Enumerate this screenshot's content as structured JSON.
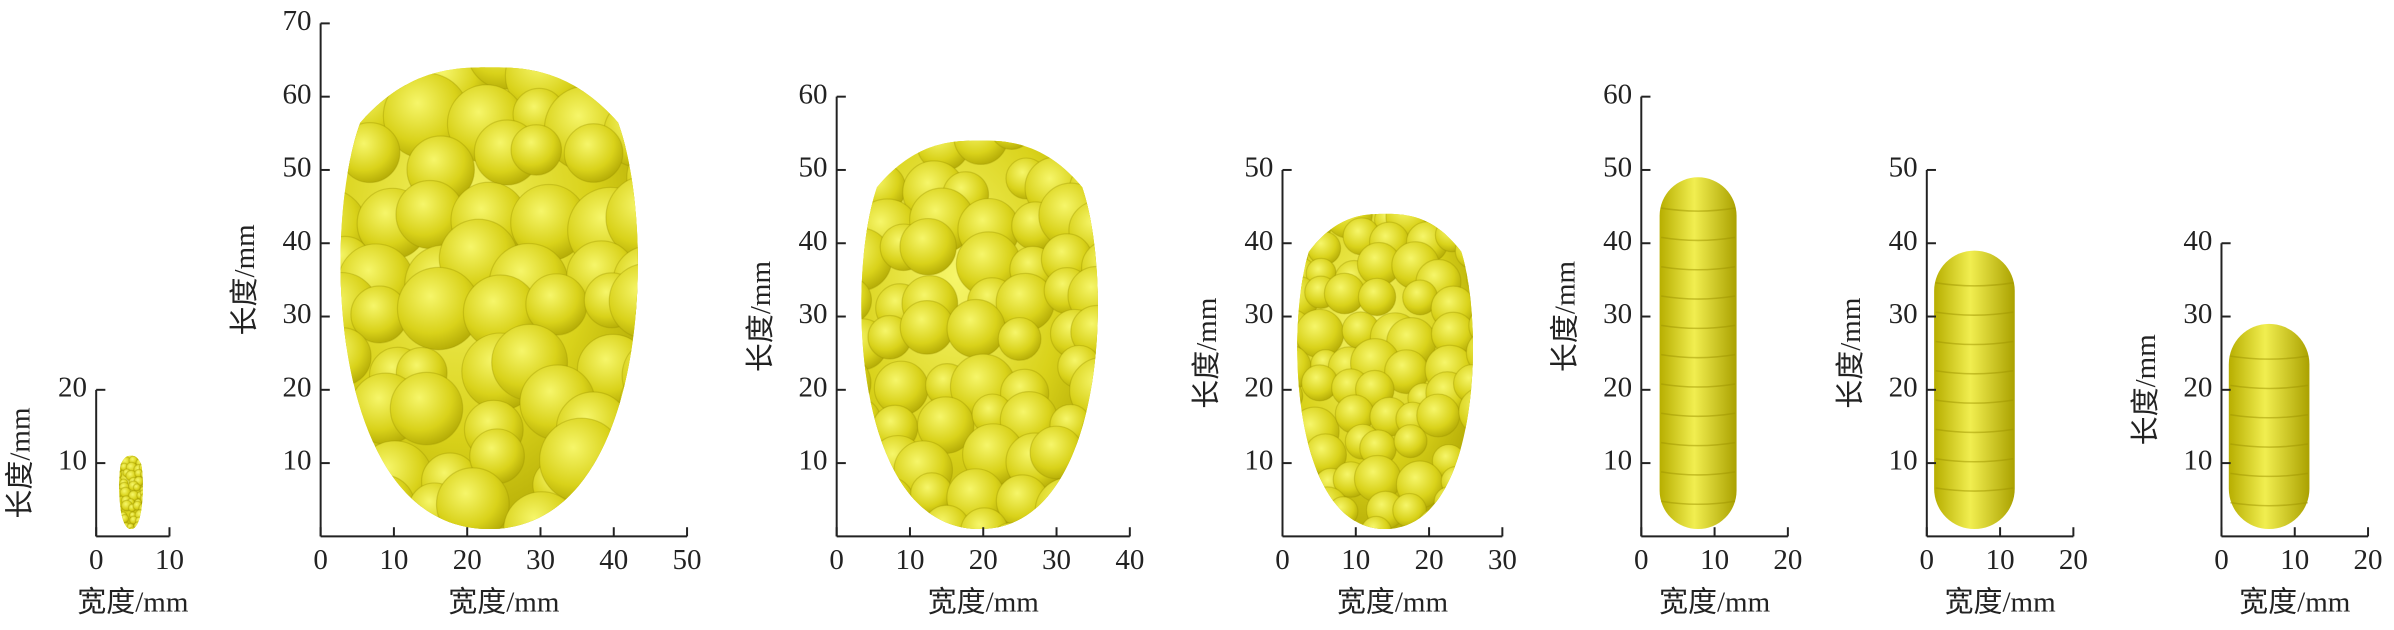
{
  "chart_data": [
    {
      "type": "illustration",
      "xlabel": "宽度/mm",
      "ylabel": "长度/mm",
      "xlim": [
        0,
        10
      ],
      "xticks": [
        0,
        10
      ],
      "ylim": [
        0,
        20
      ],
      "yticks": [
        10,
        20
      ]
    },
    {
      "type": "illustration",
      "xlabel": "宽度/mm",
      "ylabel": "长度/mm",
      "xlim": [
        0,
        50
      ],
      "xticks": [
        0,
        10,
        20,
        30,
        40,
        50
      ],
      "ylim": [
        0,
        70
      ],
      "yticks": [
        10,
        20,
        30,
        40,
        50,
        60,
        70
      ]
    },
    {
      "type": "illustration",
      "xlabel": "宽度/mm",
      "ylabel": "长度/mm",
      "xlim": [
        0,
        40
      ],
      "xticks": [
        0,
        10,
        20,
        30,
        40
      ],
      "ylim": [
        0,
        60
      ],
      "yticks": [
        10,
        20,
        30,
        40,
        50,
        60
      ]
    },
    {
      "type": "illustration",
      "xlabel": "宽度/mm",
      "ylabel": "长度/mm",
      "xlim": [
        0,
        30
      ],
      "xticks": [
        0,
        10,
        20,
        30
      ],
      "ylim": [
        0,
        50
      ],
      "yticks": [
        10,
        20,
        30,
        40,
        50
      ]
    },
    {
      "type": "illustration",
      "xlabel": "宽度/mm",
      "ylabel": "长度/mm",
      "xlim": [
        0,
        20
      ],
      "xticks": [
        0,
        10,
        20
      ],
      "ylim": [
        0,
        60
      ],
      "yticks": [
        10,
        20,
        30,
        40,
        50,
        60
      ]
    },
    {
      "type": "illustration",
      "xlabel": "宽度/mm",
      "ylabel": "长度/mm",
      "xlim": [
        0,
        20
      ],
      "xticks": [
        0,
        10,
        20
      ],
      "ylim": [
        0,
        50
      ],
      "yticks": [
        10,
        20,
        30,
        40,
        50
      ]
    },
    {
      "type": "illustration",
      "xlabel": "宽度/mm",
      "ylabel": "长度/mm",
      "xlim": [
        0,
        20
      ],
      "xticks": [
        0,
        10,
        20
      ],
      "ylim": [
        0,
        40
      ],
      "yticks": [
        10,
        20,
        30,
        40
      ]
    }
  ]
}
